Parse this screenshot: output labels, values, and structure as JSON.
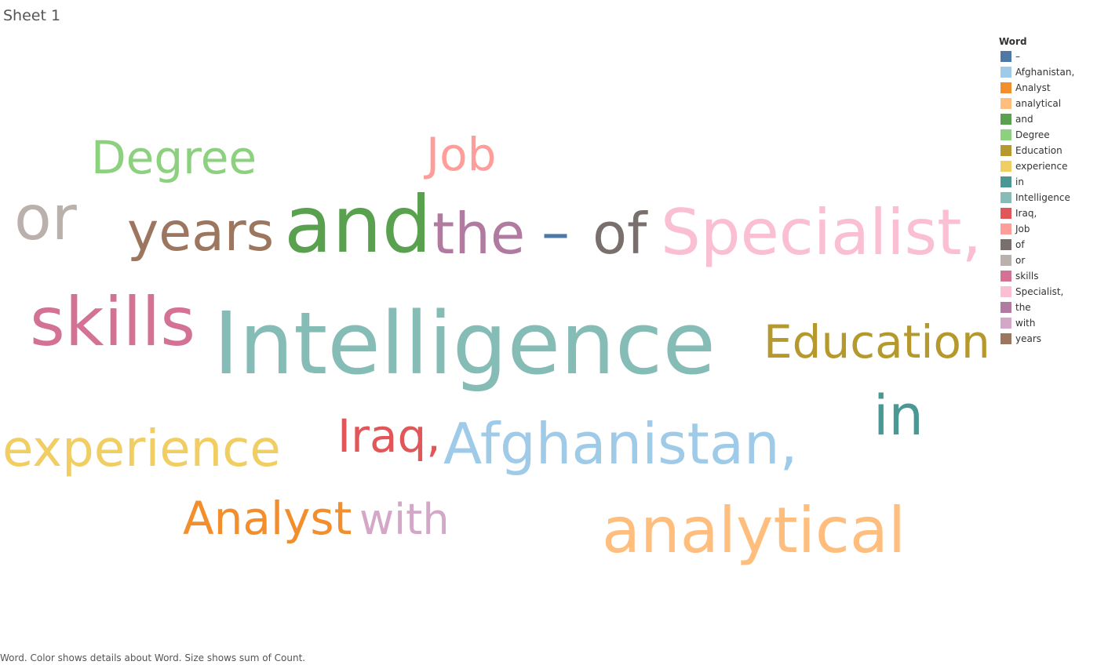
{
  "sheet": {
    "title": "Sheet 1"
  },
  "chart_data": {
    "type": "wordcloud",
    "legend_title": "Word",
    "legend_placement": "right",
    "caption": "Word.  Color shows details about Word.  Size shows sum of Count.",
    "words": [
      {
        "word": "–",
        "color": "#4e79a7"
      },
      {
        "word": "Afghanistan,",
        "color": "#a0cbe8"
      },
      {
        "word": "Analyst",
        "color": "#f28e2b"
      },
      {
        "word": "analytical",
        "color": "#ffbe7d"
      },
      {
        "word": "and",
        "color": "#59a14f"
      },
      {
        "word": "Degree",
        "color": "#8cd17d"
      },
      {
        "word": "Education",
        "color": "#b6992d"
      },
      {
        "word": "experience",
        "color": "#f1ce63"
      },
      {
        "word": "in",
        "color": "#499894"
      },
      {
        "word": "Intelligence",
        "color": "#86bcb6"
      },
      {
        "word": "Iraq,",
        "color": "#e15759"
      },
      {
        "word": "Job",
        "color": "#ff9d9a"
      },
      {
        "word": "of",
        "color": "#79706e"
      },
      {
        "word": "or",
        "color": "#bab0ac"
      },
      {
        "word": "skills",
        "color": "#d37295"
      },
      {
        "word": "Specialist,",
        "color": "#fabfd2"
      },
      {
        "word": "the",
        "color": "#b07aa1"
      },
      {
        "word": "with",
        "color": "#d4a6c8"
      },
      {
        "word": "years",
        "color": "#9d7660"
      }
    ]
  }
}
